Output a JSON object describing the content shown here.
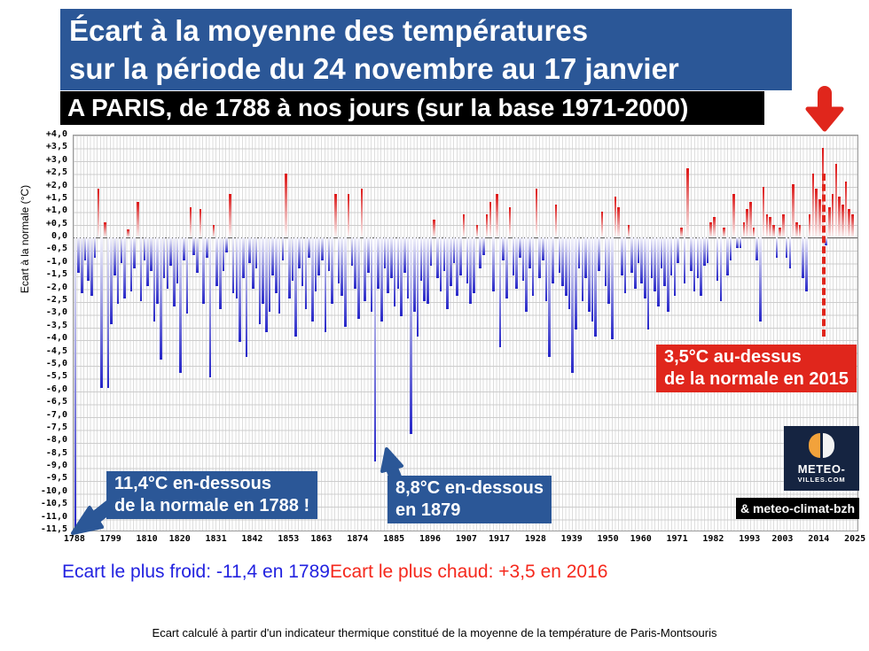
{
  "header": {
    "title_line1": "Écart à la moyenne des températures",
    "title_line2": "sur la période du 24 novembre au 17 janvier",
    "subtitle": "A PARIS, de 1788 à nos jours (sur la base 1971-2000)"
  },
  "chart_data": {
    "type": "bar",
    "title": "Écart à la moyenne des températures sur la période du 24 novembre au 17 janvier, à Paris, de 1788 à nos jours (sur la base 1971-2000)",
    "ylabel": "Ecart à la normale (°C)",
    "ylim": [
      -11.5,
      4.0
    ],
    "ytick_step": 0.5,
    "grid": true,
    "legend": "none",
    "x_start_year": 1788,
    "x_axis_end_year": 2025,
    "xticks": [
      1788,
      1799,
      1810,
      1820,
      1831,
      1842,
      1853,
      1863,
      1874,
      1885,
      1896,
      1907,
      1917,
      1928,
      1939,
      1950,
      1960,
      1971,
      1982,
      1993,
      2003,
      2014,
      2025
    ],
    "values": [
      -11.4,
      -1.4,
      -2.2,
      -0.9,
      -1.7,
      -2.3,
      -0.8,
      1.9,
      -5.9,
      0.6,
      -5.9,
      -3.4,
      -1.5,
      -2.6,
      -1.0,
      -2.4,
      0.3,
      -2.1,
      -1.2,
      1.4,
      -2.5,
      -0.9,
      -1.9,
      -1.3,
      -3.3,
      -2.6,
      -4.8,
      -1.6,
      -2.0,
      -1.1,
      -2.7,
      -1.8,
      -5.3,
      -0.9,
      -3.0,
      1.2,
      -0.7,
      -1.4,
      1.1,
      -2.6,
      -0.8,
      -5.5,
      0.5,
      -1.9,
      -2.8,
      -1.3,
      -0.6,
      1.7,
      -2.2,
      -2.4,
      -4.1,
      -1.6,
      -4.7,
      -1.0,
      -2.0,
      -1.2,
      -3.4,
      -2.6,
      -3.7,
      -2.9,
      -1.5,
      -2.2,
      -3.0,
      -0.9,
      2.5,
      -2.4,
      -1.7,
      -3.9,
      -1.2,
      -1.9,
      -2.8,
      -0.8,
      -3.3,
      -2.1,
      -1.5,
      -0.9,
      -3.7,
      -1.3,
      -2.6,
      1.7,
      -1.8,
      -2.3,
      -3.5,
      1.7,
      -1.1,
      -2.0,
      -3.2,
      1.9,
      -2.5,
      -1.4,
      -2.9,
      -8.8,
      -2.0,
      -3.3,
      -1.2,
      -2.2,
      -1.6,
      -2.7,
      -2.0,
      -3.1,
      -1.4,
      -2.4,
      -7.7,
      -2.9,
      -3.9,
      -1.7,
      -2.5,
      -2.6,
      -1.1,
      0.7,
      -1.6,
      -2.1,
      -1.3,
      -2.8,
      -1.9,
      -1.0,
      -2.3,
      -1.5,
      0.9,
      -1.8,
      -2.6,
      -2.2,
      0.5,
      -1.2,
      -0.7,
      0.9,
      1.4,
      -2.1,
      1.7,
      -4.3,
      -0.9,
      -2.4,
      1.2,
      -1.5,
      -2.0,
      -0.8,
      -1.7,
      -2.9,
      -1.2,
      -2.3,
      1.9,
      -1.6,
      -0.9,
      -2.5,
      -4.7,
      -1.8,
      1.3,
      -1.4,
      -1.9,
      -2.3,
      -2.8,
      -5.3,
      -3.6,
      -1.2,
      -2.5,
      -1.6,
      -2.9,
      -3.3,
      -3.9,
      -1.3,
      1.0,
      -1.9,
      -2.6,
      -4.0,
      1.6,
      1.2,
      -1.5,
      -2.2,
      0.5,
      -1.4,
      -2.0,
      -1.0,
      -1.8,
      -2.4,
      -3.6,
      -1.6,
      -2.1,
      -2.7,
      -1.2,
      -1.9,
      -2.9,
      -1.5,
      -2.3,
      -1.0,
      0.4,
      -1.8,
      2.7,
      -1.3,
      -2.1,
      -1.6,
      -2.3,
      -1.1,
      -1.0,
      0.6,
      0.8,
      -1.7,
      -2.5,
      0.4,
      -1.5,
      -0.9,
      1.7,
      -0.4,
      -0.4,
      0.6,
      1.1,
      1.4,
      0.4,
      -0.9,
      -3.3,
      2.0,
      0.9,
      0.8,
      0.5,
      -0.8,
      0.4,
      0.9,
      -0.8,
      -1.2,
      2.1,
      0.6,
      0.5,
      -1.6,
      -2.1,
      0.9,
      2.5,
      1.9,
      1.5,
      3.5,
      -0.3,
      1.2,
      1.7,
      2.9,
      1.6,
      1.3,
      2.2,
      1.1,
      0.9
    ],
    "record_cold": {
      "value": -11.4,
      "bar_year": 1788
    },
    "record_warm": {
      "value": 3.5,
      "bar_year": 2015
    },
    "positive_color": "#dd1414",
    "negative_color": "#2525c8"
  },
  "annotations": {
    "cold_1788": {
      "line1": "11,4°C en-dessous",
      "line2": "de la normale en 1788 !"
    },
    "cold_1879": {
      "line1": "8,8°C en-dessous",
      "line2": "en 1879"
    },
    "warm_2015": {
      "line1": "3,5°C au-dessus",
      "line2": "de la normale en 2015"
    }
  },
  "records": {
    "cold": "Ecart le plus froid: -11,4 en 1789",
    "warm": "Ecart le plus chaud: +3,5 en 2016"
  },
  "logo": {
    "line1": "METEO-",
    "line2": "VILLES.COM",
    "credit": "& meteo-climat-bzh"
  },
  "footer": "Ecart calculé à partir d'un indicateur thermique constitué de la moyenne de la température de Paris-Montsouris",
  "colors": {
    "title_bg": "#2b5797",
    "subtitle_bg": "#000000",
    "annotation_blue": "#2b5797",
    "annotation_red": "#e0261c",
    "record_cold_text": "#2222e0",
    "record_warm_text": "#f5281c",
    "logo_bg": "#152441",
    "logo_orange": "#f2a23b"
  }
}
